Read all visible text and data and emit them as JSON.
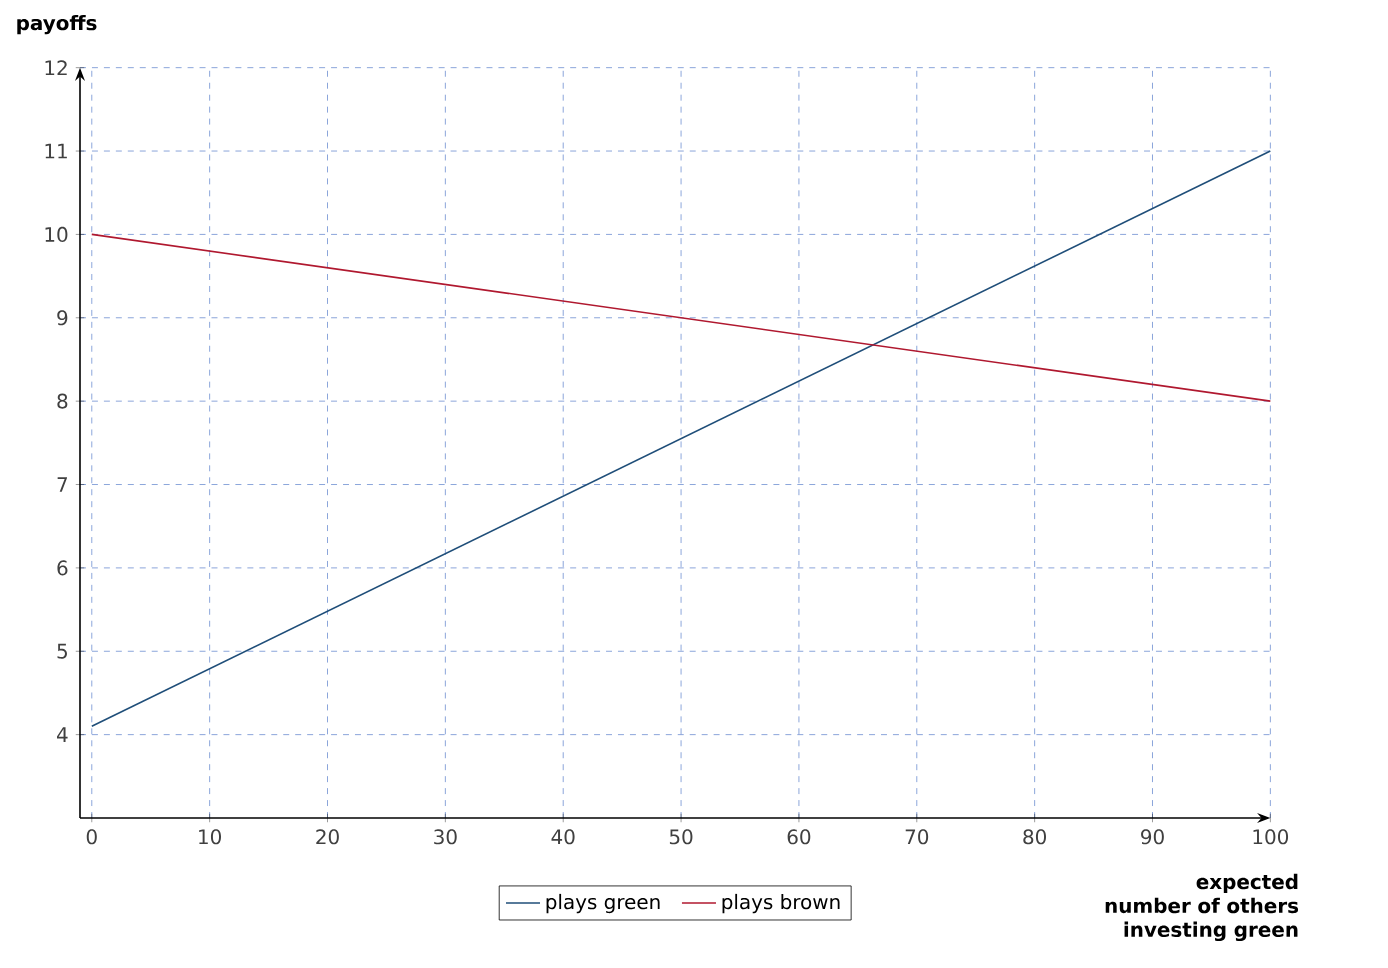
{
  "chart_data": {
    "type": "line",
    "xlabel": "expected number of others investing green",
    "ylabel": "payoffs",
    "x": [
      0,
      100
    ],
    "series": [
      {
        "name": "plays green",
        "color": "#1f4e79",
        "values": [
          4.1,
          11
        ]
      },
      {
        "name": "plays brown",
        "color": "#b0182f",
        "values": [
          10,
          8
        ]
      }
    ],
    "xlim": [
      -1,
      100
    ],
    "ylim": [
      3,
      12
    ],
    "xticks": [
      0,
      10,
      20,
      30,
      40,
      50,
      60,
      70,
      80,
      90,
      100
    ],
    "yticks": [
      4,
      5,
      6,
      7,
      8,
      9,
      10,
      11,
      12
    ],
    "grid": true,
    "legend": "bottom",
    "marker": "none",
    "line_style": "solid"
  }
}
